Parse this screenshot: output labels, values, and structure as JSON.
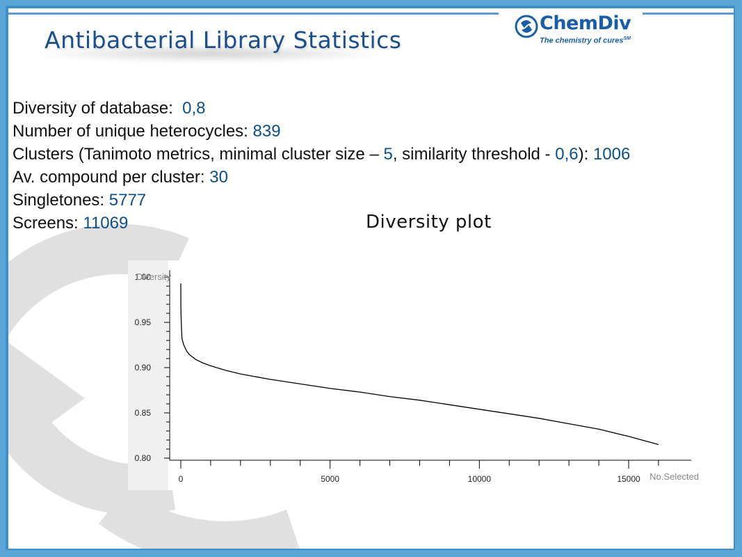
{
  "slide": {
    "title": "Antibacterial Library Statistics",
    "accent_color": "#1a4e8c",
    "value_color": "#0d4f86"
  },
  "logo": {
    "name": "ChemDiv",
    "tagline": "The chemistry of cures",
    "tagline_mark": "SM",
    "icon": "chemdiv-swirl-icon"
  },
  "stats": {
    "diversity_label": "Diversity of database:",
    "diversity_value": "0,8",
    "heterocycles_label": "Number of unique heterocycles:",
    "heterocycles_value": "839",
    "clusters_label_1": "Clusters (Tanimoto metrics, minimal cluster size –",
    "clusters_min_size": "5",
    "clusters_label_2": ", similarity threshold -",
    "clusters_threshold": "0,6",
    "clusters_label_3": "):",
    "clusters_value": "1006",
    "avg_label": "Av. compound per cluster:",
    "avg_value": "30",
    "singletones_label": "Singletones:",
    "singletones_value": "5777",
    "screens_label": "Screens:",
    "screens_value": "11069"
  },
  "plot_title": "Diversity plot",
  "chart_data": {
    "type": "line",
    "ylabel": "Diversity",
    "xlabel": "No.Selected",
    "xlim": [
      -1000,
      16500
    ],
    "ylim": [
      0.795,
      1.005
    ],
    "x_ticks": [
      0,
      5000,
      10000,
      15000
    ],
    "x_tick_labels": [
      "0",
      "5000",
      "10000",
      "15000"
    ],
    "y_ticks": [
      0.8,
      0.85,
      0.9,
      0.95,
      1.0
    ],
    "y_tick_labels": [
      "0.80",
      "0.85",
      "0.90",
      "0.95",
      "1.00"
    ],
    "grid": false,
    "line_color": "#000000",
    "series": [
      {
        "x": [
          0,
          2,
          10,
          20,
          40,
          100,
          200,
          300,
          500,
          750,
          1000,
          1500,
          2000,
          3000,
          4000,
          5000,
          6000,
          7000,
          8000,
          9000,
          10000,
          11000,
          12000,
          13000,
          14000,
          15000,
          16000
        ],
        "y": [
          0.993,
          0.968,
          0.957,
          0.945,
          0.932,
          0.925,
          0.918,
          0.914,
          0.909,
          0.905,
          0.902,
          0.897,
          0.893,
          0.887,
          0.882,
          0.877,
          0.873,
          0.868,
          0.864,
          0.859,
          0.854,
          0.849,
          0.844,
          0.838,
          0.832,
          0.824,
          0.815
        ]
      }
    ]
  }
}
